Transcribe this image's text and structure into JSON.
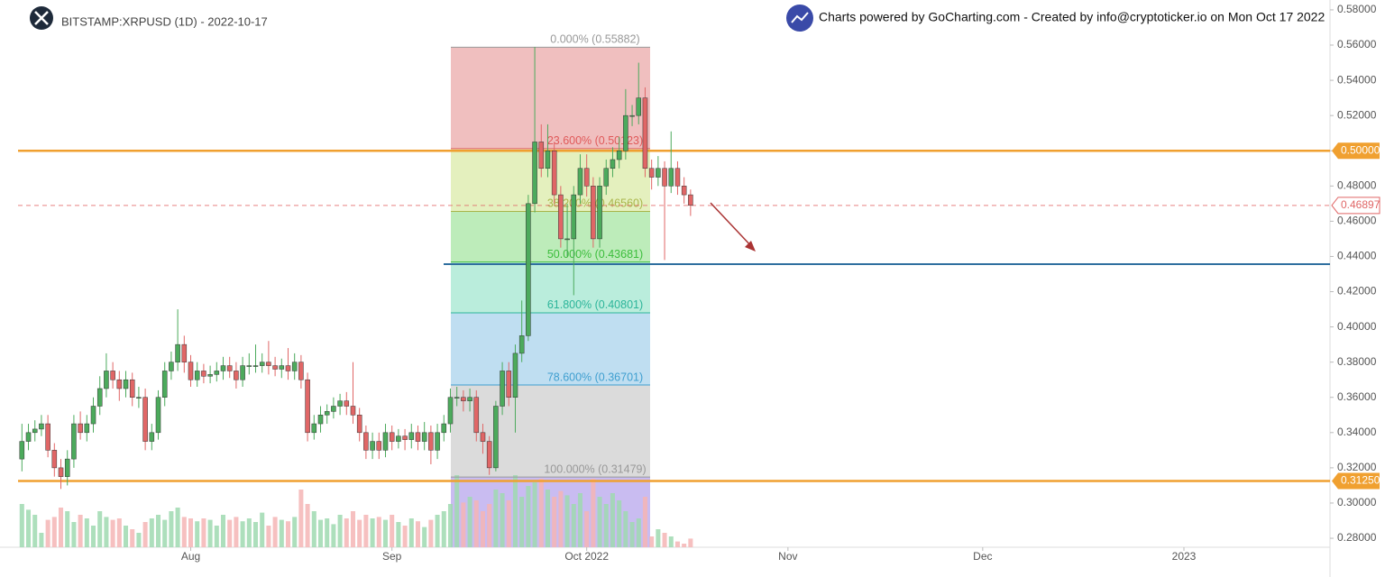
{
  "chart_data": {
    "type": "candlestick",
    "title": "BITSTAMP:XRPUSD (1D) - 2022-10-17",
    "subtitle": "Charts powered by GoCharting.com - Created by info@cryptoticker.io on Mon Oct 17 2022",
    "open": [
      0.325,
      0.335,
      0.34,
      0.342,
      0.345,
      0.33,
      0.32,
      0.315,
      0.325,
      0.345,
      0.34,
      0.345,
      0.355,
      0.365,
      0.375,
      0.37,
      0.365,
      0.37,
      0.36,
      0.36,
      0.335,
      0.34,
      0.36,
      0.375,
      0.38,
      0.39,
      0.38,
      0.37,
      0.375,
      0.372,
      0.373,
      0.375,
      0.378,
      0.375,
      0.37,
      0.378,
      0.378,
      0.378,
      0.38,
      0.378,
      0.376,
      0.378,
      0.375,
      0.38,
      0.37,
      0.34,
      0.345,
      0.35,
      0.352,
      0.355,
      0.358,
      0.355,
      0.35,
      0.34,
      0.33,
      0.335,
      0.33,
      0.34,
      0.335,
      0.338,
      0.336,
      0.34,
      0.335,
      0.34,
      0.33,
      0.34,
      0.345,
      0.36,
      0.36,
      0.358,
      0.36,
      0.34,
      0.335,
      0.32,
      0.355,
      0.375,
      0.36,
      0.385,
      0.395,
      0.47,
      0.505,
      0.49,
      0.5,
      0.475,
      0.45,
      0.45,
      0.475,
      0.49,
      0.48,
      0.45,
      0.48,
      0.49,
      0.495,
      0.5,
      0.52,
      0.52,
      0.53,
      0.49,
      0.485,
      0.49,
      0.48,
      0.49,
      0.48,
      0.475
    ],
    "high": [
      0.345,
      0.345,
      0.347,
      0.35,
      0.35,
      0.334,
      0.325,
      0.33,
      0.35,
      0.352,
      0.35,
      0.36,
      0.372,
      0.385,
      0.38,
      0.375,
      0.375,
      0.374,
      0.366,
      0.365,
      0.345,
      0.364,
      0.38,
      0.386,
      0.41,
      0.395,
      0.384,
      0.38,
      0.379,
      0.378,
      0.38,
      0.383,
      0.383,
      0.38,
      0.383,
      0.385,
      0.39,
      0.385,
      0.392,
      0.383,
      0.382,
      0.388,
      0.385,
      0.384,
      0.374,
      0.35,
      0.355,
      0.356,
      0.36,
      0.362,
      0.363,
      0.38,
      0.354,
      0.344,
      0.34,
      0.34,
      0.345,
      0.344,
      0.342,
      0.342,
      0.345,
      0.344,
      0.346,
      0.344,
      0.345,
      0.35,
      0.365,
      0.366,
      0.364,
      0.365,
      0.364,
      0.345,
      0.338,
      0.358,
      0.38,
      0.38,
      0.39,
      0.415,
      0.475,
      0.559,
      0.515,
      0.515,
      0.505,
      0.48,
      0.47,
      0.48,
      0.498,
      0.498,
      0.485,
      0.485,
      0.495,
      0.502,
      0.508,
      0.535,
      0.526,
      0.55,
      0.536,
      0.495,
      0.497,
      0.494,
      0.511,
      0.494,
      0.485,
      0.478
    ],
    "low": [
      0.318,
      0.33,
      0.335,
      0.338,
      0.326,
      0.315,
      0.308,
      0.31,
      0.32,
      0.336,
      0.335,
      0.34,
      0.35,
      0.36,
      0.365,
      0.358,
      0.36,
      0.355,
      0.354,
      0.33,
      0.33,
      0.336,
      0.355,
      0.37,
      0.375,
      0.374,
      0.366,
      0.366,
      0.368,
      0.368,
      0.369,
      0.37,
      0.371,
      0.365,
      0.366,
      0.373,
      0.374,
      0.374,
      0.373,
      0.372,
      0.371,
      0.37,
      0.37,
      0.365,
      0.335,
      0.336,
      0.34,
      0.345,
      0.348,
      0.35,
      0.35,
      0.345,
      0.335,
      0.325,
      0.325,
      0.325,
      0.326,
      0.33,
      0.331,
      0.33,
      0.331,
      0.33,
      0.33,
      0.322,
      0.325,
      0.335,
      0.34,
      0.355,
      0.352,
      0.352,
      0.335,
      0.328,
      0.316,
      0.318,
      0.35,
      0.355,
      0.34,
      0.38,
      0.392,
      0.465,
      0.485,
      0.485,
      0.47,
      0.445,
      0.44,
      0.418,
      0.47,
      0.474,
      0.445,
      0.445,
      0.475,
      0.485,
      0.49,
      0.495,
      0.514,
      0.515,
      0.485,
      0.478,
      0.48,
      0.438,
      0.476,
      0.475,
      0.47,
      0.463
    ],
    "close": [
      0.335,
      0.34,
      0.342,
      0.345,
      0.33,
      0.32,
      0.315,
      0.325,
      0.345,
      0.34,
      0.345,
      0.355,
      0.365,
      0.375,
      0.37,
      0.365,
      0.37,
      0.36,
      0.36,
      0.335,
      0.34,
      0.36,
      0.375,
      0.38,
      0.39,
      0.38,
      0.37,
      0.375,
      0.372,
      0.373,
      0.375,
      0.378,
      0.375,
      0.37,
      0.378,
      0.378,
      0.378,
      0.38,
      0.378,
      0.376,
      0.378,
      0.375,
      0.38,
      0.37,
      0.34,
      0.345,
      0.35,
      0.352,
      0.355,
      0.358,
      0.355,
      0.35,
      0.34,
      0.33,
      0.335,
      0.33,
      0.34,
      0.335,
      0.338,
      0.336,
      0.34,
      0.335,
      0.34,
      0.33,
      0.34,
      0.345,
      0.36,
      0.36,
      0.358,
      0.36,
      0.34,
      0.335,
      0.32,
      0.355,
      0.375,
      0.36,
      0.385,
      0.395,
      0.47,
      0.505,
      0.49,
      0.5,
      0.475,
      0.45,
      0.45,
      0.475,
      0.49,
      0.48,
      0.45,
      0.48,
      0.49,
      0.495,
      0.5,
      0.52,
      0.52,
      0.53,
      0.49,
      0.485,
      0.49,
      0.48,
      0.49,
      0.48,
      0.475,
      0.469
    ],
    "volume": [
      60,
      52,
      45,
      20,
      38,
      42,
      55,
      50,
      35,
      45,
      40,
      30,
      50,
      42,
      38,
      40,
      30,
      25,
      20,
      35,
      40,
      45,
      38,
      50,
      55,
      42,
      40,
      36,
      40,
      38,
      30,
      45,
      38,
      42,
      36,
      40,
      35,
      48,
      30,
      42,
      38,
      36,
      42,
      80,
      60,
      50,
      38,
      40,
      32,
      45,
      40,
      50,
      38,
      45,
      40,
      42,
      38,
      45,
      35,
      30,
      40,
      36,
      28,
      38,
      45,
      50,
      60,
      100,
      62,
      70,
      65,
      50,
      60,
      80,
      75,
      65,
      100,
      70,
      85,
      90,
      95,
      80,
      70,
      78,
      72,
      60,
      75,
      50,
      95,
      70,
      60,
      75,
      65,
      50,
      35,
      40,
      70,
      15,
      25,
      20,
      15,
      8,
      5,
      12
    ],
    "vlim": [
      0,
      100
    ],
    "up_color": "#4caa5c",
    "down_color": "#e06666",
    "up_volume_color": "#9fd9b0",
    "down_volume_color": "#f5b5b5",
    "xlim": [
      -0.6,
      201.5
    ],
    "xticks": [
      {
        "value": 26,
        "label": "Aug"
      },
      {
        "value": 57,
        "label": "Sep"
      },
      {
        "value": 87,
        "label": "Oct 2022"
      },
      {
        "value": 118,
        "label": "Nov"
      },
      {
        "value": 148,
        "label": "Dec"
      },
      {
        "value": 179,
        "label": "2023"
      }
    ],
    "ylim": [
      0.2749,
      0.5856
    ],
    "yticks": [
      {
        "value": 0.28,
        "label": "0.28000"
      },
      {
        "value": 0.3,
        "label": "0.30000"
      },
      {
        "value": 0.32,
        "label": "0.32000"
      },
      {
        "value": 0.34,
        "label": "0.34000"
      },
      {
        "value": 0.36,
        "label": "0.36000"
      },
      {
        "value": 0.38,
        "label": "0.38000"
      },
      {
        "value": 0.4,
        "label": "0.40000"
      },
      {
        "value": 0.42,
        "label": "0.42000"
      },
      {
        "value": 0.44,
        "label": "0.44000"
      },
      {
        "value": 0.46,
        "label": "0.46000"
      },
      {
        "value": 0.48,
        "label": "0.48000"
      },
      {
        "value": 0.5,
        "label": "0.50000"
      },
      {
        "value": 0.52,
        "label": "0.52000"
      },
      {
        "value": 0.54,
        "label": "0.54000"
      },
      {
        "value": 0.56,
        "label": "0.56000"
      },
      {
        "value": 0.58,
        "label": "0.58000"
      }
    ],
    "fib": {
      "levels": [
        {
          "value": 0.55882,
          "label": "0.000% (0.55882)",
          "color": "#999999",
          "fill": "#efbcbc"
        },
        {
          "value": 0.50123,
          "label": "23.600% (0.50123)",
          "color": "#e05a5a",
          "fill": "#e3efba"
        },
        {
          "value": 0.4656,
          "label": "38.200% (0.46560)",
          "color": "#a9b54a",
          "fill": "#b9ebb6"
        },
        {
          "value": 0.43681,
          "label": "50.000% (0.43681)",
          "color": "#3cbd3c",
          "fill": "#b6ecda"
        },
        {
          "value": 0.40801,
          "label": "61.800% (0.40801)",
          "color": "#2cb59a",
          "fill": "#bcdcf0"
        },
        {
          "value": 0.36701,
          "label": "78.600% (0.36701)",
          "color": "#3f9fd0",
          "fill": "#d9d9d9"
        },
        {
          "value": 0.31479,
          "label": "100.000% (0.31479)",
          "color": "#999999",
          "fill": "#c6b8f0"
        }
      ]
    },
    "hlines": [
      {
        "value": 0.5,
        "label": "0.50000",
        "color": "#f0a030"
      },
      {
        "value": 0.3125,
        "label": "0.31250",
        "color": "#f0a030"
      }
    ],
    "trend_line": {
      "value": 0.4356,
      "color": "#2f6f9f"
    },
    "last_price": {
      "value": 0.46897,
      "label": "0.46897",
      "color": "#e06666"
    }
  }
}
